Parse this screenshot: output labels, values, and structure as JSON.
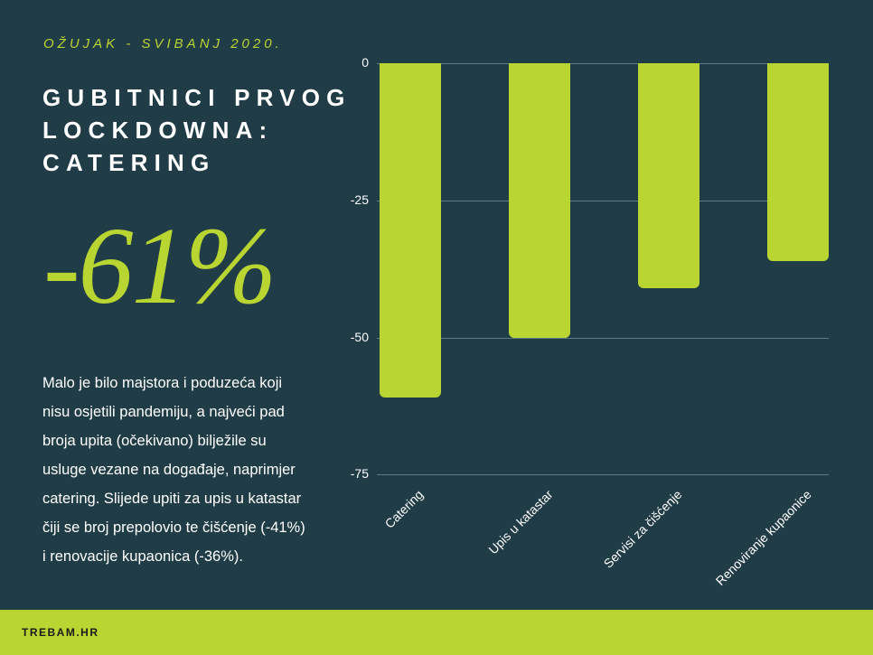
{
  "header": {
    "subtitle": "OŽUJAK - SVIBANJ 2020.",
    "title_lines": [
      "GUBITNICI PRVOG",
      "LOCKDOWNA:",
      "CATERING"
    ]
  },
  "highlight": {
    "value": "-61%"
  },
  "description": {
    "lines": [
      "Malo je bilo majstora i poduzeća koji",
      "nisu osjetili  pandemiju, a najveći pad",
      "broja upita (očekivano) bilježile su",
      "usluge vezane na događaje,  naprimjer",
      "catering. Slijede upiti za upis u katastar",
      "čiji se broj prepolovio te čišćenje (-41%)",
      "i renovacije kupaonica (-36%)."
    ]
  },
  "footer": {
    "brand": "TREBAM.HR"
  },
  "colors": {
    "background": "#203c47",
    "accent": "#b9d531",
    "text": "#ffffff",
    "gridline": "#5f7a84"
  },
  "chart_data": {
    "type": "bar",
    "title": "",
    "xlabel": "",
    "ylabel": "",
    "categories": [
      "Catering",
      "Upis u katastar",
      "Servisi za čišćenje",
      "Renoviranje kupaonice"
    ],
    "values": [
      -61,
      -50,
      -41,
      -36
    ],
    "ylim": [
      -75,
      0
    ],
    "yticks": [
      0,
      -25,
      -50,
      -75
    ],
    "ytick_labels": [
      "0",
      "-25",
      "-50",
      "-75"
    ],
    "grid": true,
    "legend": null,
    "bar_color": "#b9d531",
    "xtick_rotation": -45
  }
}
